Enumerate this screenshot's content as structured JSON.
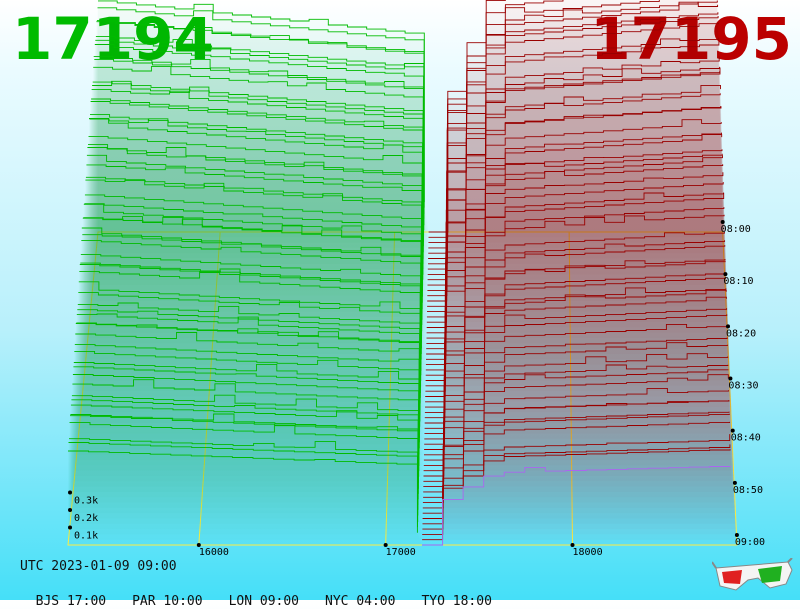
{
  "header": {
    "bid_price": "17194",
    "ask_price": "17195",
    "bid_color": "#00bb00",
    "ask_color": "#bb0000"
  },
  "footer": {
    "utc": "UTC 2023-01-09 09:00",
    "zones": [
      "BJS 17:00",
      "PAR 10:00",
      "LON 09:00",
      "NYC 04:00",
      "TYO 18:00"
    ]
  },
  "chart_data": {
    "type": "area",
    "x_ticks": [
      "16000",
      "17000",
      "18000"
    ],
    "volume_ticks": [
      "0.1k",
      "0.2k",
      "0.3k"
    ],
    "time_ticks": [
      "09:00",
      "08:50",
      "08:40",
      "08:30",
      "08:20",
      "08:10",
      "08:00"
    ],
    "mid_price": 17194.5,
    "price_range": [
      15000,
      18900
    ],
    "time_range_minutes": 60,
    "volume_range": [
      0,
      1.2
    ],
    "snapshots": 60,
    "bid_color": "#00bb00",
    "ask_color": "#990000",
    "latest_ask_color": "#aa66ee"
  },
  "icons": {
    "glasses": "3d-glasses-icon"
  }
}
